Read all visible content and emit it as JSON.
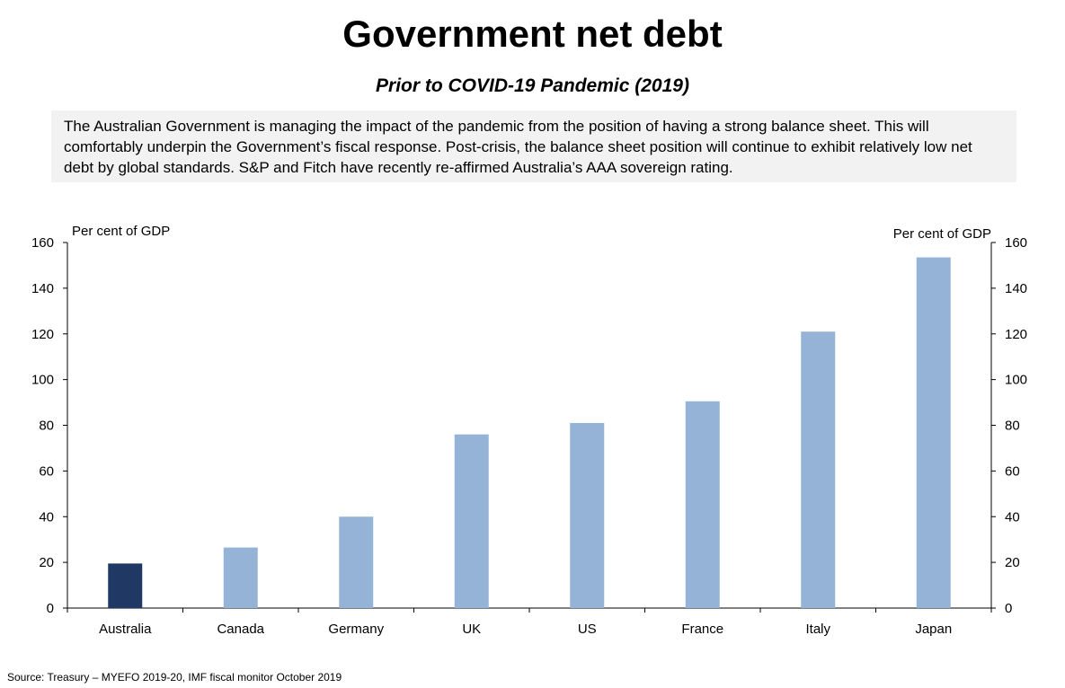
{
  "title": "Government net debt",
  "subtitle": "Prior to COVID-19 Pandemic (2019)",
  "description": "The Australian Government is managing the impact of the pandemic from the position of having a strong balance sheet. This will comfortably underpin the Government’s fiscal response. Post-crisis, the balance sheet position will continue to exhibit relatively low net debt by global standards. S&P and Fitch have recently re-affirmed Australia’s AAA sovereign rating.",
  "source": "Source: Treasury – MYEFO 2019-20, IMF fiscal monitor October 2019",
  "chart_data": {
    "type": "bar",
    "categories": [
      "Australia",
      "Canada",
      "Germany",
      "UK",
      "US",
      "France",
      "Italy",
      "Japan"
    ],
    "values": [
      19.5,
      26.5,
      40,
      76,
      81,
      90.5,
      121,
      153.5
    ],
    "ylabel_left": "Per cent of GDP",
    "ylabel_right": "Per cent of GDP",
    "ylim": [
      0,
      160
    ],
    "yticks": [
      0,
      20,
      40,
      60,
      80,
      100,
      120,
      140,
      160
    ],
    "grid": false,
    "highlight_category": "Australia",
    "colors": {
      "highlight": "#1f3864",
      "default": "#95b3d7",
      "axis": "#000000"
    }
  }
}
